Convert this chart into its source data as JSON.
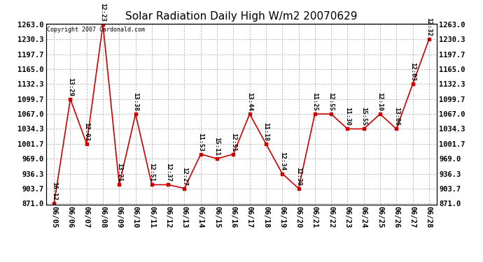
{
  "title": "Solar Radiation Daily High W/m2 20070629",
  "copyright": "Copyright 2007 Cardonald.com",
  "dates": [
    "06/05",
    "06/06",
    "06/07",
    "06/08",
    "06/09",
    "06/10",
    "06/11",
    "06/12",
    "06/13",
    "06/14",
    "06/15",
    "06/16",
    "06/17",
    "06/18",
    "06/19",
    "06/20",
    "06/21",
    "06/22",
    "06/23",
    "06/24",
    "06/25",
    "06/26",
    "06/27",
    "06/28"
  ],
  "values": [
    871.0,
    1099.7,
    1001.7,
    1263.0,
    912.0,
    1067.0,
    912.0,
    912.0,
    904.0,
    979.0,
    969.0,
    979.0,
    1067.0,
    1001.7,
    936.3,
    904.0,
    1067.0,
    1067.0,
    1034.3,
    1034.3,
    1067.0,
    1034.3,
    1132.3,
    1230.3
  ],
  "labels": [
    "16:12",
    "13:29",
    "12:03",
    "12:23",
    "13:21",
    "13:38",
    "12:51",
    "12:37",
    "12:27",
    "11:53",
    "15:11",
    "12:51",
    "13:44",
    "11:18",
    "12:34",
    "12:30",
    "11:25",
    "12:55",
    "11:30",
    "15:55",
    "12:10",
    "13:06",
    "12:03",
    "12:32"
  ],
  "line_color": "#cc0000",
  "marker_color": "#cc0000",
  "background_color": "#ffffff",
  "grid_color": "#bbbbbb",
  "ylim_min": 871.0,
  "ylim_max": 1263.0,
  "yticks": [
    871.0,
    903.7,
    936.3,
    969.0,
    1001.7,
    1034.3,
    1067.0,
    1099.7,
    1132.3,
    1165.0,
    1197.7,
    1230.3,
    1263.0
  ],
  "title_fontsize": 11,
  "label_fontsize": 6.5,
  "tick_fontsize": 7.5,
  "copyright_fontsize": 6
}
